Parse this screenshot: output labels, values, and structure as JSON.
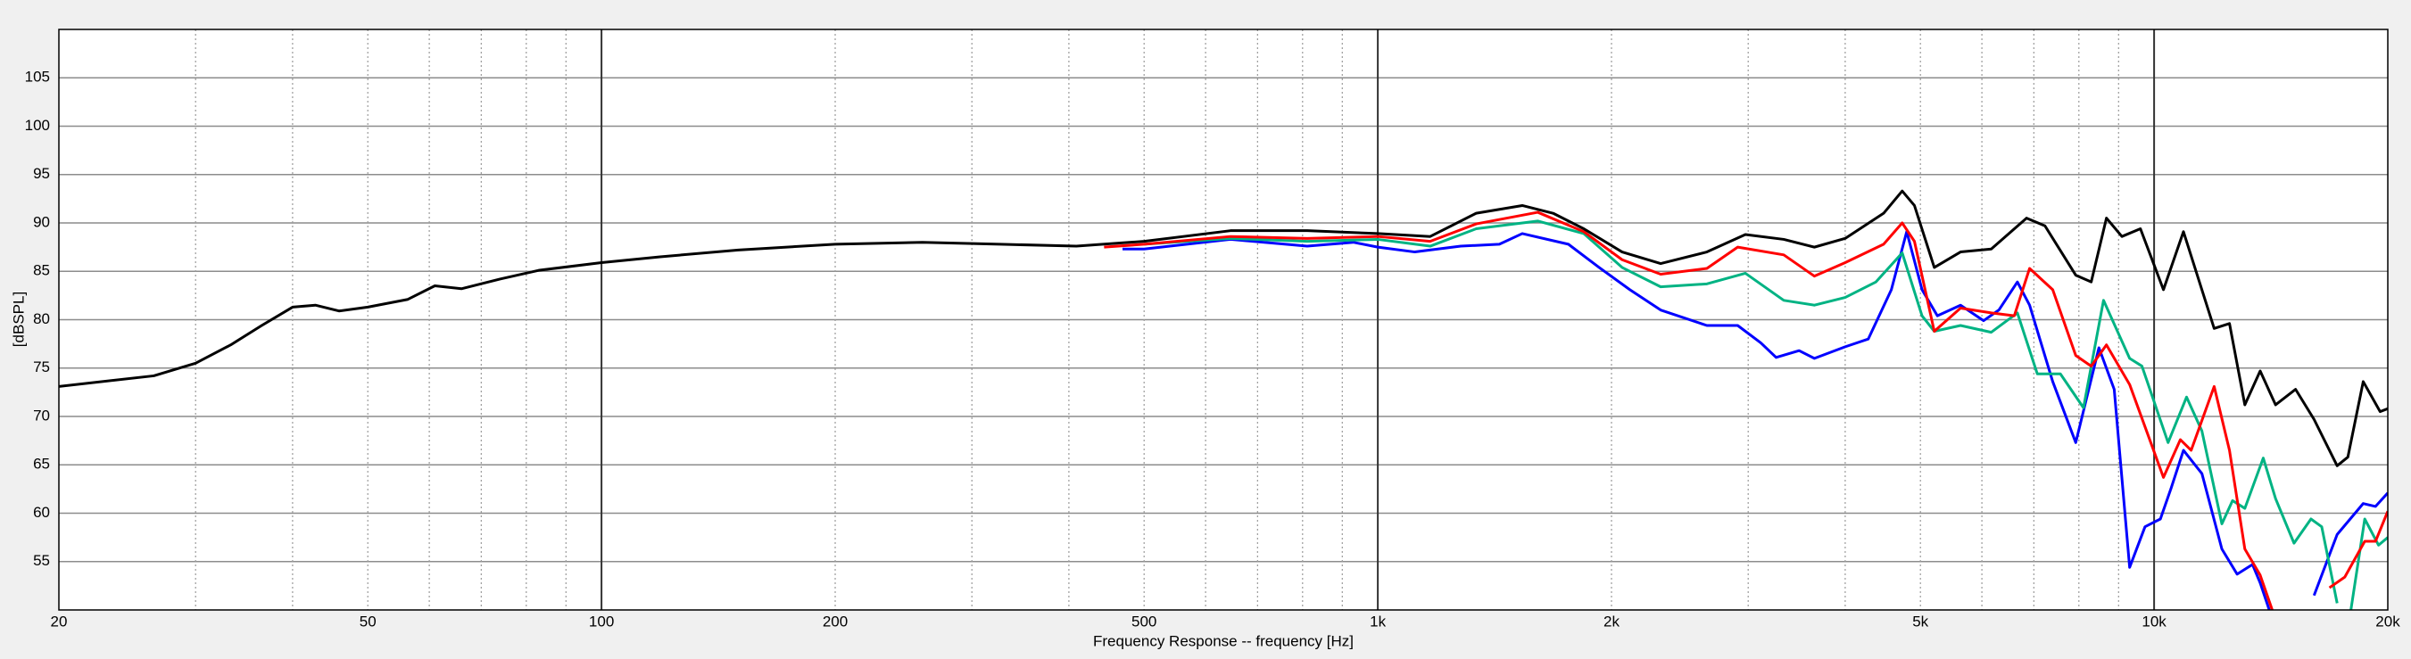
{
  "chart_data": {
    "type": "line",
    "xlabel": "Frequency Response -- frequency [Hz]",
    "ylabel": "[dBSPL]",
    "xscale": "log",
    "xlim": [
      20,
      20000
    ],
    "ylim": [
      50,
      110
    ],
    "xticks": [
      20,
      50,
      100,
      200,
      500,
      {
        "value": 1000,
        "label": "1k"
      },
      {
        "value": 2000,
        "label": "2k"
      },
      {
        "value": 5000,
        "label": "5k"
      },
      {
        "value": 10000,
        "label": "10k"
      },
      {
        "value": 20000,
        "label": "20k"
      }
    ],
    "xminor": [
      30,
      40,
      60,
      70,
      80,
      90,
      300,
      400,
      600,
      700,
      800,
      900,
      3000,
      4000,
      6000,
      7000,
      8000,
      9000
    ],
    "yticks": [
      55,
      60,
      65,
      70,
      75,
      80,
      85,
      90,
      95,
      100,
      105
    ],
    "grid": true,
    "series": [
      {
        "color": "#000000",
        "x": [
          20,
          26.5,
          30,
          33.3,
          36.5,
          40,
          42.8,
          45.9,
          50,
          56.3,
          61,
          66,
          74,
          83,
          100,
          119,
          150,
          200,
          259,
          326,
          409,
          500,
          646,
          811,
          1000,
          1168,
          1339,
          1535,
          1682,
          1842,
          2064,
          2314,
          2654,
          2975,
          3334,
          3651,
          4000,
          4483,
          4737,
          4912,
          5210,
          5632,
          6169,
          6850,
          7234,
          7926,
          8298,
          8682,
          9089,
          9602,
          10281,
          10910,
          11950,
          12505,
          13088,
          13697,
          14338,
          15214,
          16070,
          17210,
          17766,
          18594,
          19548,
          20000
        ],
        "values": [
          73.1,
          74.2,
          75.5,
          77.4,
          79.4,
          81.3,
          81.5,
          80.9,
          81.3,
          82.1,
          83.5,
          83.2,
          84.2,
          85.1,
          85.9,
          86.5,
          87.2,
          87.8,
          88,
          87.8,
          87.6,
          88.1,
          89.2,
          89.2,
          88.9,
          88.6,
          91,
          91.8,
          91,
          89.4,
          87,
          85.8,
          87,
          88.8,
          88.3,
          87.5,
          88.4,
          91,
          93.3,
          91.8,
          85.4,
          87,
          87.3,
          90.5,
          89.7,
          84.6,
          83.9,
          90.5,
          88.6,
          89.4,
          83.1,
          89.1,
          79.1,
          79.6,
          71.2,
          74.7,
          71.2,
          72.8,
          69.7,
          64.9,
          65.8,
          73.6,
          70.5,
          70.8
        ]
      },
      {
        "color": "#ff0000",
        "x": [
          444,
          500,
          646,
          811,
          1000,
          1168,
          1339,
          1607,
          1842,
          2064,
          2314,
          2654,
          2908,
          3334,
          3651,
          4000,
          4483,
          4737,
          4912,
          5210,
          5632,
          6169,
          6605,
          6912,
          7403,
          7926,
          8298,
          8682,
          9300,
          10281,
          10810,
          11161,
          11950,
          12505,
          13088,
          13697,
          14338,
          15800,
          16820,
          17604,
          18678,
          19286,
          20000
        ],
        "values": [
          87.5,
          87.8,
          88.6,
          88.4,
          88.6,
          88.1,
          89.9,
          91.1,
          89.1,
          86.2,
          84.7,
          85.3,
          87.5,
          86.7,
          84.5,
          85.9,
          87.8,
          90,
          88.1,
          78.8,
          81.2,
          80.7,
          80.4,
          85.3,
          83.1,
          76.3,
          75.2,
          77.4,
          73.3,
          63.7,
          67.6,
          66.5,
          73.1,
          66.5,
          56.3,
          53.6,
          49,
          null,
          52.3,
          53.4,
          57.1,
          57.1,
          60.2
        ]
      },
      {
        "color": "#00b383",
        "x": [
          500,
          646,
          811,
          1000,
          1168,
          1339,
          1607,
          1842,
          2064,
          2314,
          2654,
          2975,
          3334,
          3651,
          4000,
          4382,
          4737,
          5024,
          5210,
          5632,
          6169,
          6666,
          7072,
          7573,
          8110,
          8607,
          9300,
          9646,
          10423,
          11010,
          11523,
          12226,
          12619,
          13088,
          13823,
          14338,
          15144,
          15924,
          16440,
          17210,
          17500,
          17848,
          18678,
          19458,
          20000
        ],
        "values": [
          87.8,
          88.4,
          88.1,
          88.3,
          87.6,
          89.4,
          90.2,
          88.9,
          85.4,
          83.4,
          83.7,
          84.8,
          82,
          81.5,
          82.3,
          83.9,
          86.9,
          80.4,
          78.8,
          79.4,
          78.7,
          80.7,
          74.4,
          74.4,
          70.9,
          82,
          76,
          75.2,
          67.3,
          72,
          68.5,
          58.9,
          61.3,
          60.5,
          65.7,
          61.5,
          56.9,
          59.4,
          58.6,
          50.7,
          null,
          49,
          59.4,
          56.7,
          57.5
        ]
      },
      {
        "color": "#0000ff",
        "x": [
          469,
          500,
          646,
          811,
          930,
          1000,
          1116,
          1279,
          1434,
          1535,
          1760,
          1928,
          2112,
          2314,
          2654,
          2908,
          3115,
          3259,
          3489,
          3651,
          4000,
          4283,
          4587,
          4801,
          5024,
          5258,
          5632,
          6031,
          6310,
          6666,
          6912,
          7403,
          7926,
          8490,
          8884,
          9300,
          9734,
          10188,
          10519,
          10910,
          11523,
          12226,
          12792,
          13389,
          13697,
          14208,
          15200,
          16070,
          17210,
          18594,
          19286,
          20000
        ],
        "values": [
          87.3,
          87.3,
          88.3,
          87.6,
          88,
          87.5,
          87,
          87.6,
          87.8,
          88.9,
          87.8,
          85.4,
          83.1,
          81,
          79.4,
          79.4,
          77.6,
          76.1,
          76.8,
          76,
          77.2,
          78,
          83.1,
          89.1,
          83.1,
          80.4,
          81.5,
          79.9,
          81,
          83.9,
          81.5,
          73.6,
          67.3,
          77.1,
          72.8,
          54.4,
          58.6,
          59.4,
          62.6,
          66.5,
          64.1,
          56.3,
          53.7,
          54.7,
          52.8,
          49,
          null,
          51.5,
          57.8,
          61,
          60.7,
          62.1
        ]
      }
    ]
  }
}
